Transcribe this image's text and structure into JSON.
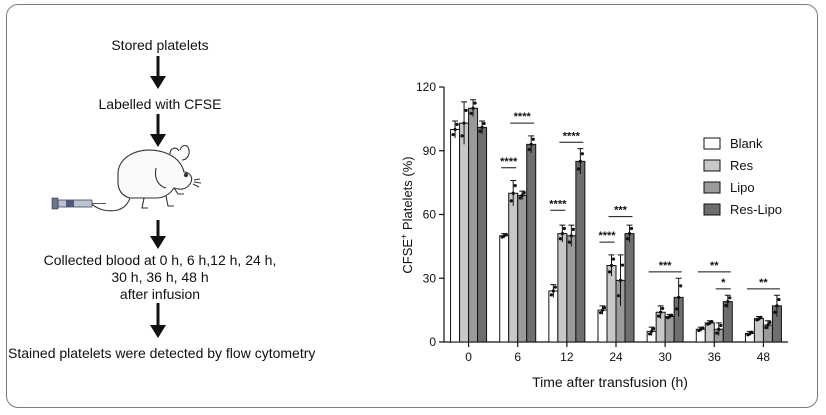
{
  "workflow": {
    "step1": "Stored  platelets",
    "step2": "Labelled with CFSE",
    "step3_line1": "Collected blood at 0 h, 6 h,12 h, 24 h,",
    "step3_line2": "30 h, 36 h, 48 h",
    "step3_line3": "after infusion",
    "step4": "Stained platelets were detected by flow cytometry",
    "illustration": "mouse-with-syringe"
  },
  "chart_data": {
    "type": "bar",
    "xlabel": "Time after transfusion (h)",
    "ylabel_main": "CFSE",
    "ylabel_sup": "+",
    "ylabel_rest": " Platelets (%)",
    "categories": [
      "0",
      "6",
      "12",
      "24",
      "30",
      "36",
      "48"
    ],
    "ylim": [
      0,
      120
    ],
    "yticks": [
      "0",
      "30",
      "60",
      "90",
      "120"
    ],
    "series": [
      {
        "name": "Blank",
        "color": "#ffffff",
        "values": [
          100,
          50,
          24,
          15,
          5,
          6,
          4
        ],
        "errors": [
          4,
          1,
          3,
          2,
          2,
          1,
          1
        ]
      },
      {
        "name": "Res",
        "color": "#c8c8c8",
        "values": [
          103,
          70,
          51,
          36,
          14,
          9,
          11
        ],
        "errors": [
          10,
          6,
          4,
          5,
          3,
          1,
          1
        ]
      },
      {
        "name": "Lipo",
        "color": "#9a9a9a",
        "values": [
          110,
          69,
          50,
          29,
          12,
          6,
          8
        ],
        "errors": [
          4,
          2,
          5,
          12,
          1,
          3,
          2
        ]
      },
      {
        "name": "Res-Lipo",
        "color": "#6e6e6e",
        "values": [
          101,
          93,
          85,
          51,
          21,
          19,
          17
        ],
        "errors": [
          3,
          4,
          6,
          4,
          9,
          3,
          5
        ]
      }
    ],
    "significance": [
      {
        "category": "6",
        "from": 0,
        "to": 1,
        "y": 82,
        "label": "****"
      },
      {
        "category": "6",
        "from": 1,
        "to": 3,
        "y": 103,
        "label": "****"
      },
      {
        "category": "12",
        "from": 0,
        "to": 1,
        "y": 62,
        "label": "****"
      },
      {
        "category": "12",
        "from": 1,
        "to": 3,
        "y": 94,
        "label": "****"
      },
      {
        "category": "24",
        "from": 0,
        "to": 1,
        "y": 47,
        "label": "****"
      },
      {
        "category": "24",
        "from": 1,
        "to": 3,
        "y": 59,
        "label": "***"
      },
      {
        "category": "30",
        "from": 0,
        "to": 3,
        "y": 33,
        "label": "***"
      },
      {
        "category": "36",
        "from": 0,
        "to": 3,
        "y": 33,
        "label": "**"
      },
      {
        "category": "36",
        "from": 2,
        "to": 3,
        "y": 25,
        "label": "*"
      },
      {
        "category": "48",
        "from": 0,
        "to": 3,
        "y": 25,
        "label": "**"
      }
    ],
    "legend_position": "right",
    "grid": false
  }
}
